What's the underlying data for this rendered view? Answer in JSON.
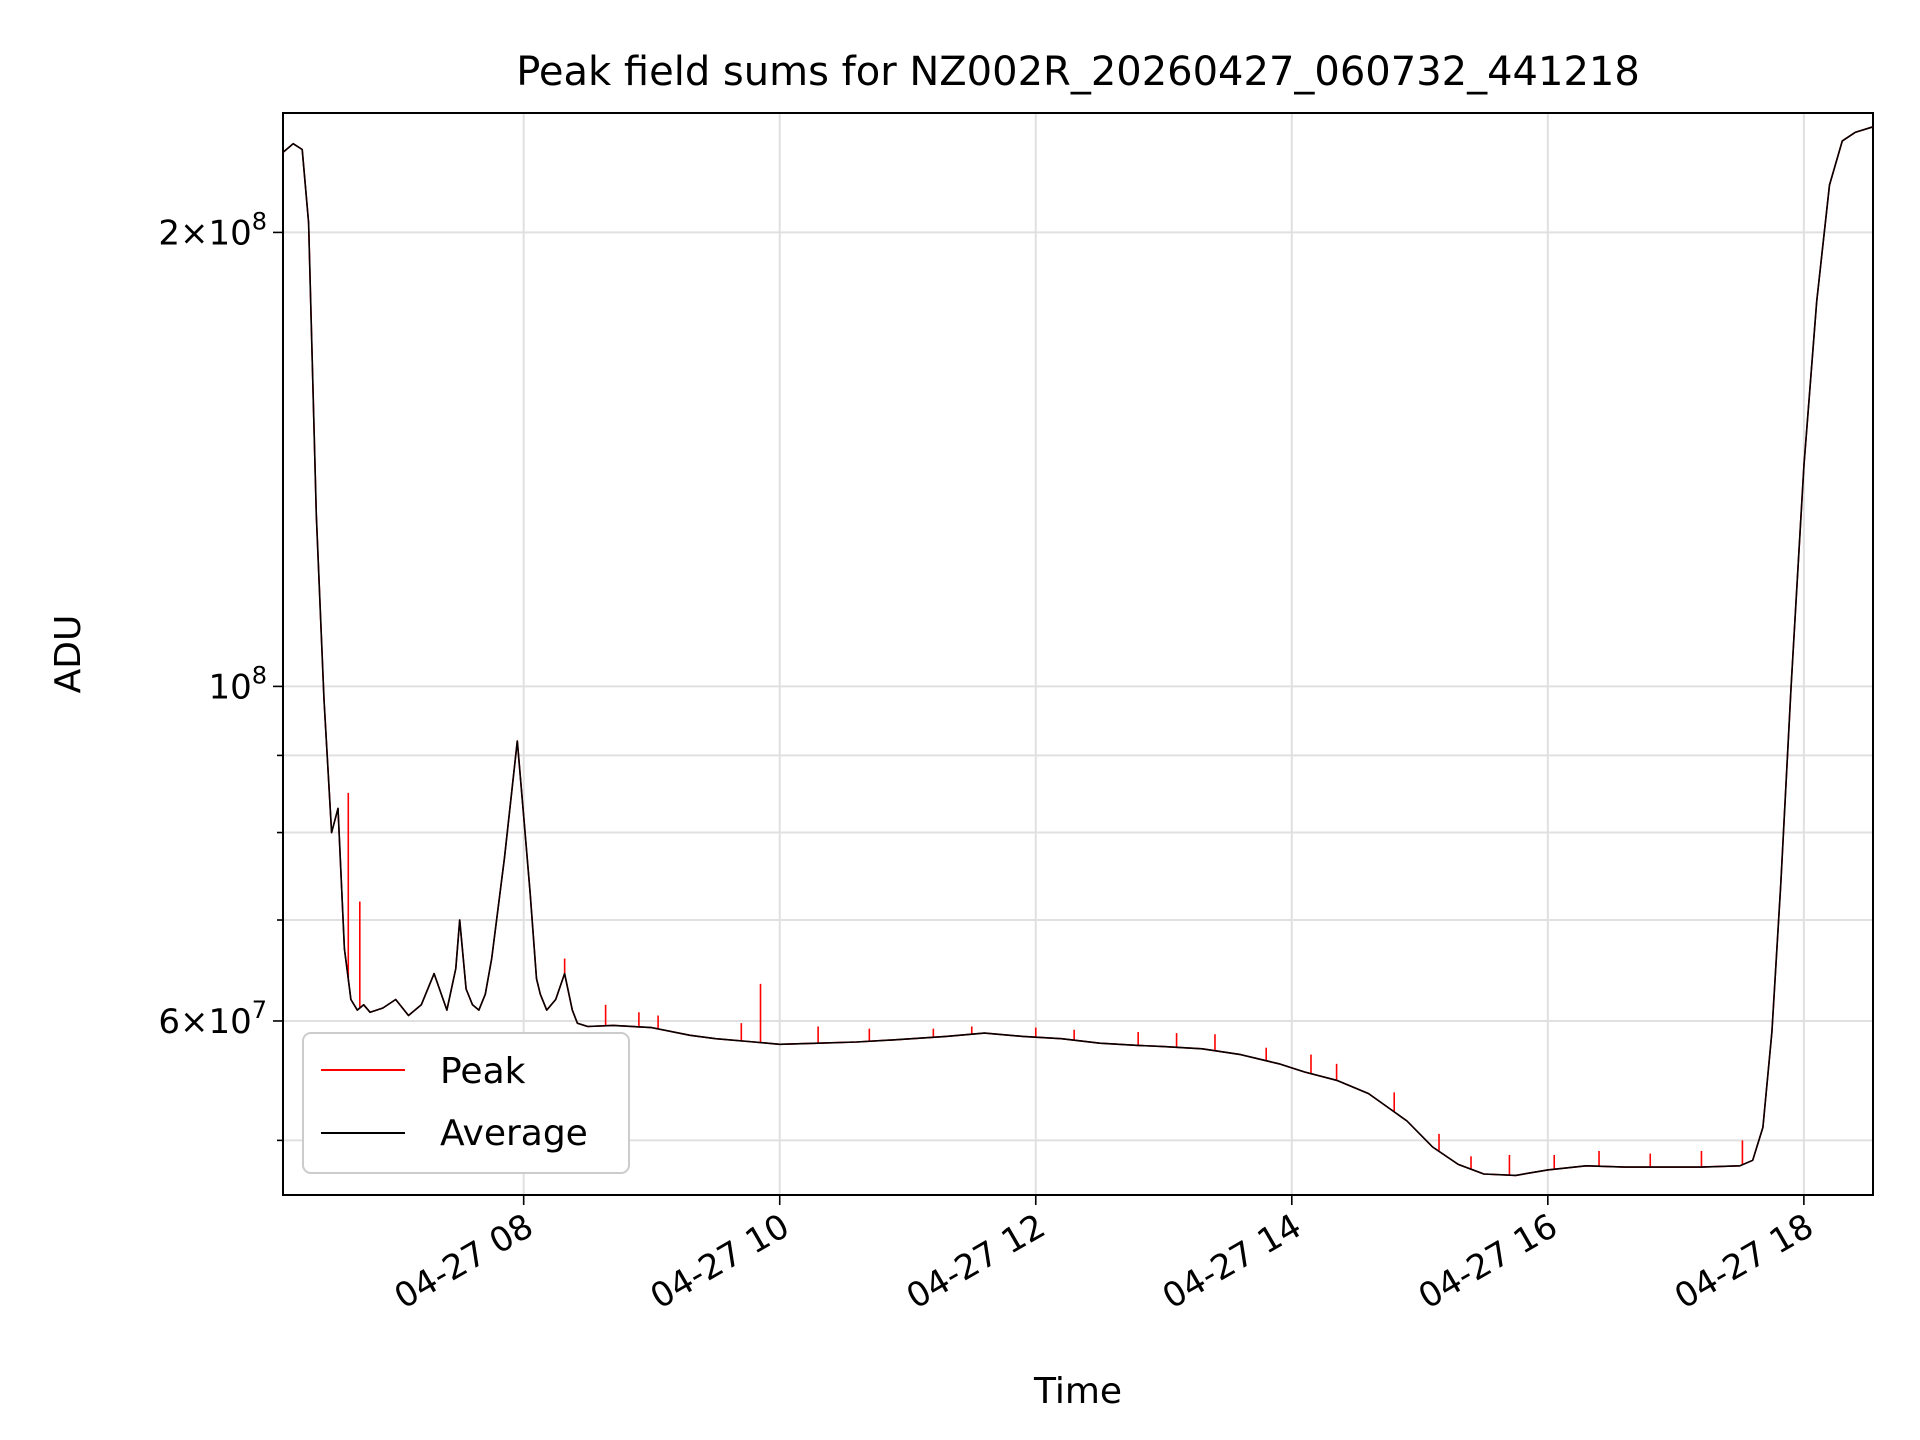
{
  "chart_data": {
    "type": "line",
    "title": "Peak field sums for NZ002R_20260427_060732_441218",
    "xlabel": "Time",
    "ylabel": "ADU",
    "x_unit": "hours (2026-04-27, local)",
    "xlim": [
      6.12,
      18.54
    ],
    "ylim": [
      46000000,
      240000000
    ],
    "yscale": "log",
    "grid": true,
    "legend_location": "lower-left",
    "x_tick_values": [
      8,
      10,
      12,
      14,
      16,
      18
    ],
    "x_tick_labels": [
      "04-27 08",
      "04-27 10",
      "04-27 12",
      "04-27 14",
      "04-27 16",
      "04-27 18"
    ],
    "y_major_ticks": [
      {
        "value": 100000000,
        "base": "10",
        "exp": "8",
        "mantissa": ""
      },
      {
        "value": 60000000,
        "base": "10",
        "exp": "7",
        "mantissa": "6"
      },
      {
        "value": 200000000,
        "base": "10",
        "exp": "8",
        "mantissa": "2"
      }
    ],
    "y_minor_ticks": [
      50000000,
      70000000,
      80000000,
      90000000
    ],
    "series": [
      {
        "name": "Average",
        "color": "#000000",
        "x": [
          6.12,
          6.2,
          6.27,
          6.32,
          6.38,
          6.44,
          6.5,
          6.55,
          6.6,
          6.65,
          6.7,
          6.75,
          6.8,
          6.9,
          7.0,
          7.1,
          7.2,
          7.3,
          7.4,
          7.47,
          7.5,
          7.55,
          7.6,
          7.65,
          7.7,
          7.75,
          7.85,
          7.95,
          8.0,
          8.05,
          8.1,
          8.13,
          8.18,
          8.25,
          8.32,
          8.38,
          8.42,
          8.5,
          8.7,
          9.0,
          9.3,
          9.5,
          9.8,
          10.0,
          10.3,
          10.6,
          10.9,
          11.3,
          11.6,
          11.9,
          12.2,
          12.5,
          12.8,
          13.0,
          13.3,
          13.6,
          13.9,
          14.1,
          14.35,
          14.6,
          14.9,
          15.1,
          15.3,
          15.5,
          15.75,
          16.0,
          16.3,
          16.6,
          16.9,
          17.2,
          17.5,
          17.6,
          17.68,
          17.75,
          17.82,
          17.9,
          18.0,
          18.1,
          18.2,
          18.3,
          18.4,
          18.54
        ],
        "y": [
          226000000,
          229000000,
          227000000,
          203000000,
          130000000,
          98000000,
          80000000,
          83000000,
          67000000,
          62000000,
          61000000,
          61500000,
          60800000,
          61200000,
          62000000,
          60500000,
          61500000,
          64500000,
          61000000,
          65000000,
          70000000,
          63000000,
          61500000,
          61000000,
          62500000,
          66000000,
          77000000,
          92000000,
          82000000,
          73000000,
          64000000,
          62500000,
          61000000,
          62000000,
          64500000,
          61000000,
          59800000,
          59500000,
          59600000,
          59400000,
          58700000,
          58400000,
          58100000,
          57900000,
          58000000,
          58100000,
          58300000,
          58600000,
          58900000,
          58600000,
          58400000,
          58000000,
          57800000,
          57700000,
          57500000,
          57000000,
          56200000,
          55500000,
          54800000,
          53700000,
          51500000,
          49500000,
          48200000,
          47500000,
          47400000,
          47800000,
          48100000,
          48000000,
          48000000,
          48000000,
          48100000,
          48500000,
          51000000,
          59000000,
          74000000,
          100000000,
          140000000,
          180000000,
          215000000,
          230000000,
          233000000,
          235000000
        ]
      },
      {
        "name": "Peak",
        "color": "#ff0000",
        "x": [
          6.12,
          6.2,
          6.27,
          6.32,
          6.38,
          6.44,
          6.5,
          6.55,
          6.6,
          6.65,
          6.7,
          6.75,
          6.8,
          6.9,
          7.0,
          7.1,
          7.2,
          7.3,
          7.4,
          7.47,
          7.5,
          7.55,
          7.6,
          7.65,
          7.7,
          7.75,
          7.85,
          7.95,
          8.0,
          8.05,
          8.1,
          8.13,
          8.18,
          8.25,
          8.32,
          8.38,
          8.42,
          8.5,
          8.7,
          9.0,
          9.3,
          9.5,
          9.8,
          10.0,
          10.3,
          10.6,
          10.9,
          11.3,
          11.6,
          11.9,
          12.2,
          12.5,
          12.8,
          13.0,
          13.3,
          13.6,
          13.9,
          14.1,
          14.35,
          14.6,
          14.9,
          15.1,
          15.3,
          15.5,
          15.75,
          16.0,
          16.3,
          16.6,
          16.9,
          17.2,
          17.5,
          17.6,
          17.68,
          17.75,
          17.82,
          17.9,
          18.0,
          18.1,
          18.2,
          18.3,
          18.4,
          18.54
        ],
        "y": [
          226000000,
          229000000,
          227000000,
          203000000,
          130000000,
          98000000,
          80000000,
          83000000,
          67000000,
          62000000,
          61000000,
          61500000,
          60800000,
          61200000,
          62000000,
          60500000,
          61500000,
          64500000,
          61000000,
          65000000,
          70000000,
          63000000,
          61500000,
          61000000,
          62500000,
          66000000,
          77000000,
          92000000,
          82000000,
          73000000,
          64000000,
          62500000,
          61000000,
          62000000,
          64500000,
          61000000,
          59800000,
          59500000,
          59600000,
          59400000,
          58700000,
          58400000,
          58100000,
          57900000,
          58000000,
          58100000,
          58300000,
          58600000,
          58900000,
          58600000,
          58400000,
          58000000,
          57800000,
          57700000,
          57500000,
          57000000,
          56200000,
          55500000,
          54800000,
          53700000,
          51500000,
          49500000,
          48200000,
          47500000,
          47400000,
          47800000,
          48100000,
          48000000,
          48000000,
          48000000,
          48100000,
          48500000,
          51000000,
          59000000,
          74000000,
          100000000,
          140000000,
          180000000,
          215000000,
          230000000,
          233000000,
          235000000
        ],
        "spikes": [
          {
            "x": 6.63,
            "y": 85000000
          },
          {
            "x": 6.72,
            "y": 72000000
          },
          {
            "x": 8.32,
            "y": 66000000
          },
          {
            "x": 8.64,
            "y": 61500000
          },
          {
            "x": 8.9,
            "y": 60800000
          },
          {
            "x": 9.05,
            "y": 60500000
          },
          {
            "x": 9.7,
            "y": 59800000
          },
          {
            "x": 9.85,
            "y": 63500000
          },
          {
            "x": 10.3,
            "y": 59500000
          },
          {
            "x": 10.7,
            "y": 59300000
          },
          {
            "x": 11.2,
            "y": 59300000
          },
          {
            "x": 11.5,
            "y": 59500000
          },
          {
            "x": 12.0,
            "y": 59400000
          },
          {
            "x": 12.3,
            "y": 59200000
          },
          {
            "x": 12.8,
            "y": 59000000
          },
          {
            "x": 13.1,
            "y": 58900000
          },
          {
            "x": 13.4,
            "y": 58800000
          },
          {
            "x": 13.8,
            "y": 57600000
          },
          {
            "x": 14.15,
            "y": 57000000
          },
          {
            "x": 14.35,
            "y": 56200000
          },
          {
            "x": 14.8,
            "y": 53800000
          },
          {
            "x": 15.15,
            "y": 50500000
          },
          {
            "x": 15.4,
            "y": 48800000
          },
          {
            "x": 15.7,
            "y": 48900000
          },
          {
            "x": 16.05,
            "y": 48900000
          },
          {
            "x": 16.4,
            "y": 49200000
          },
          {
            "x": 16.8,
            "y": 49000000
          },
          {
            "x": 17.2,
            "y": 49200000
          },
          {
            "x": 17.52,
            "y": 50000000
          }
        ]
      }
    ]
  }
}
